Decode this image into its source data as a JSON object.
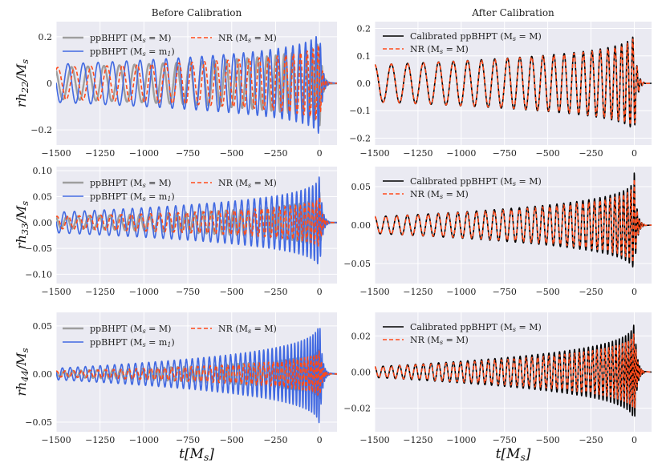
{
  "figure": {
    "x_axis_label": "t[M_s]",
    "col_titles": [
      "Before Calibration",
      "After Calibration"
    ]
  },
  "colors": {
    "panel_bg": "#eaeaf2",
    "grid": "#ffffff",
    "gray": "#9e9e9e",
    "blue": "#4169e1",
    "orange": "#ff4a1a",
    "black": "#000000"
  },
  "chart_data": [
    {
      "type": "line",
      "id": "p00",
      "row": 0,
      "col": 0,
      "title": "Before Calibration",
      "ylabel": "rh_22/M_s",
      "xlabel": "",
      "xlim": [
        -1500,
        100
      ],
      "ylim": [
        -0.265,
        0.265
      ],
      "xticks": [
        -1500,
        -1250,
        -1000,
        -750,
        -500,
        -250,
        0
      ],
      "xtick_labels": [
        "−1500",
        "−1250",
        "−1000",
        "−750",
        "−500",
        "−250",
        "0"
      ],
      "yticks": [
        -0.2,
        0,
        0.2
      ],
      "ytick_labels": [
        "−0.2",
        "0",
        "0.2"
      ],
      "legend": [
        {
          "label": "ppBHPT (M_s = M)",
          "color": "gray"
        },
        {
          "label": "ppBHPT (M_s = m_1)",
          "color": "blue"
        },
        {
          "label": "NR (M_s = M)",
          "color": "orange",
          "dash": true
        }
      ],
      "series": [
        {
          "name": "ppBHPT (M_s = M)",
          "color": "gray",
          "width": 2.4,
          "amp0": 0.068,
          "peak": 0.2,
          "p0": 98,
          "p1": 19,
          "phase": 0.6,
          "tstart": -1500,
          "tend": 60
        },
        {
          "name": "ppBHPT (M_s = m_1)",
          "color": "blue",
          "width": 1.6,
          "amp0": 0.082,
          "peak": 0.25,
          "p0": 90,
          "p1": 17,
          "phase": 1.5,
          "tstart": -1500,
          "tend": 60
        },
        {
          "name": "NR (M_s = M)",
          "color": "orange",
          "width": 1.6,
          "dash": true,
          "amp0": 0.068,
          "peak": 0.19,
          "p0": 98,
          "p1": 19,
          "phase": -0.6,
          "tstart": -1500,
          "tend": 60
        }
      ]
    },
    {
      "type": "line",
      "id": "p01",
      "row": 0,
      "col": 1,
      "title": "After Calibration",
      "ylabel": "",
      "xlabel": "",
      "xlim": [
        -1500,
        100
      ],
      "ylim": [
        -0.225,
        0.225
      ],
      "xticks": [
        -1500,
        -1250,
        -1000,
        -750,
        -500,
        -250,
        0
      ],
      "xtick_labels": [
        "−1500",
        "−1250",
        "−1000",
        "−750",
        "−500",
        "−250",
        "0"
      ],
      "yticks": [
        -0.2,
        -0.1,
        0,
        0.1,
        0.2
      ],
      "ytick_labels": [
        "−0.2",
        "−0.1",
        "0.0",
        "0.1",
        "0.2"
      ],
      "legend": [
        {
          "label": "Calibrated ppBHPT (M_s = M)",
          "color": "black"
        },
        {
          "label": "NR (M_s = M)",
          "color": "orange",
          "dash": true
        }
      ],
      "series": [
        {
          "name": "Calibrated ppBHPT (M_s = M)",
          "color": "black",
          "width": 1.6,
          "amp0": 0.068,
          "peak": 0.2,
          "p0": 98,
          "p1": 19,
          "phase": 0,
          "tstart": -1500,
          "tend": 60
        },
        {
          "name": "NR (M_s = M)",
          "color": "orange",
          "width": 1.6,
          "dash": true,
          "amp0": 0.068,
          "peak": 0.19,
          "p0": 98,
          "p1": 19,
          "phase": 0,
          "tstart": -1500,
          "tend": 60
        }
      ]
    },
    {
      "type": "line",
      "id": "p10",
      "row": 1,
      "col": 0,
      "title": "",
      "ylabel": "rh_33/M_s",
      "xlabel": "",
      "xlim": [
        -1500,
        100
      ],
      "ylim": [
        -0.118,
        0.108
      ],
      "xticks": [
        -1500,
        -1250,
        -1000,
        -750,
        -500,
        -250,
        0
      ],
      "xtick_labels": [
        "−1500",
        "−1250",
        "−1000",
        "−750",
        "−500",
        "−250",
        "0"
      ],
      "yticks": [
        -0.1,
        -0.05,
        0,
        0.05,
        0.1
      ],
      "ytick_labels": [
        "−0.10",
        "−0.05",
        "0.00",
        "0.05",
        "0.10"
      ],
      "legend": [
        {
          "label": "ppBHPT (M_s = M)",
          "color": "gray"
        },
        {
          "label": "ppBHPT (M_s = m_1)",
          "color": "blue"
        },
        {
          "label": "NR (M_s = M)",
          "color": "orange",
          "dash": true
        }
      ],
      "series": [
        {
          "name": "ppBHPT (M_s = M)",
          "color": "gray",
          "width": 2.4,
          "amp0": 0.011,
          "peak": 0.06,
          "p0": 65,
          "p1": 13,
          "phase": 0.4,
          "tstart": -1500,
          "tend": 60
        },
        {
          "name": "ppBHPT (M_s = m_1)",
          "color": "blue",
          "width": 1.6,
          "amp0": 0.02,
          "peak": 0.1,
          "p0": 60,
          "p1": 12,
          "phase": 1.4,
          "tstart": -1500,
          "tend": 60
        },
        {
          "name": "NR (M_s = M)",
          "color": "orange",
          "width": 1.6,
          "dash": true,
          "amp0": 0.012,
          "peak": 0.055,
          "p0": 65,
          "p1": 13,
          "phase": -0.5,
          "tstart": -1500,
          "tend": 60
        }
      ]
    },
    {
      "type": "line",
      "id": "p11",
      "row": 1,
      "col": 1,
      "title": "",
      "ylabel": "",
      "xlabel": "",
      "xlim": [
        -1500,
        100
      ],
      "ylim": [
        -0.076,
        0.076
      ],
      "xticks": [
        -1500,
        -1250,
        -1000,
        -750,
        -500,
        -250,
        0
      ],
      "xtick_labels": [
        "−1500",
        "−1250",
        "−1000",
        "−750",
        "−500",
        "−250",
        "0"
      ],
      "yticks": [
        -0.05,
        0,
        0.05
      ],
      "ytick_labels": [
        "−0.05",
        "0.00",
        "0.05"
      ],
      "legend": [
        {
          "label": "Calibrated ppBHPT (M_s = M)",
          "color": "black"
        },
        {
          "label": "NR (M_s = M)",
          "color": "orange",
          "dash": true
        }
      ],
      "series": [
        {
          "name": "Calibrated ppBHPT (M_s = M)",
          "color": "black",
          "width": 1.6,
          "amp0": 0.011,
          "peak": 0.068,
          "p0": 65,
          "p1": 13,
          "phase": 0,
          "tstart": -1500,
          "tend": 60
        },
        {
          "name": "NR (M_s = M)",
          "color": "orange",
          "width": 1.6,
          "dash": true,
          "amp0": 0.011,
          "peak": 0.06,
          "p0": 65,
          "p1": 13,
          "phase": 0,
          "tstart": -1500,
          "tend": 60
        }
      ]
    },
    {
      "type": "line",
      "id": "p20",
      "row": 2,
      "col": 0,
      "title": "",
      "ylabel": "rh_44/M_s",
      "xlabel": "t[M_s]",
      "xlim": [
        -1500,
        100
      ],
      "ylim": [
        -0.06,
        0.064
      ],
      "xticks": [
        -1500,
        -1250,
        -1000,
        -750,
        -500,
        -250,
        0
      ],
      "xtick_labels": [
        "−1500",
        "−1250",
        "−1000",
        "−750",
        "−500",
        "−250",
        "0"
      ],
      "yticks": [
        -0.05,
        0,
        0.05
      ],
      "ytick_labels": [
        "−0.05",
        "0.00",
        "0.05"
      ],
      "legend": [
        {
          "label": "ppBHPT (M_s = M)",
          "color": "gray"
        },
        {
          "label": "ppBHPT (M_s = m_1)",
          "color": "blue"
        },
        {
          "label": "NR (M_s = M)",
          "color": "orange",
          "dash": true
        }
      ],
      "series": [
        {
          "name": "ppBHPT (M_s = M)",
          "color": "gray",
          "width": 2.4,
          "amp0": 0.003,
          "peak": 0.03,
          "p0": 49,
          "p1": 10,
          "phase": 0.4,
          "tstart": -1500,
          "tend": 60
        },
        {
          "name": "ppBHPT (M_s = m_1)",
          "color": "blue",
          "width": 1.6,
          "amp0": 0.006,
          "peak": 0.06,
          "p0": 45,
          "p1": 9,
          "phase": 1.2,
          "tstart": -1500,
          "tend": 60
        },
        {
          "name": "NR (M_s = M)",
          "color": "orange",
          "width": 1.6,
          "dash": true,
          "amp0": 0.003,
          "peak": 0.028,
          "p0": 49,
          "p1": 10,
          "phase": -0.4,
          "tstart": -1500,
          "tend": 60
        }
      ]
    },
    {
      "type": "line",
      "id": "p21",
      "row": 2,
      "col": 1,
      "title": "",
      "ylabel": "",
      "xlabel": "t[M_s]",
      "xlim": [
        -1500,
        100
      ],
      "ylim": [
        -0.033,
        0.033
      ],
      "xticks": [
        -1500,
        -1250,
        -1000,
        -750,
        -500,
        -250,
        0
      ],
      "xtick_labels": [
        "−1500",
        "−1250",
        "−1000",
        "−750",
        "−500",
        "−250",
        "0"
      ],
      "yticks": [
        -0.02,
        0,
        0.02
      ],
      "ytick_labels": [
        "−0.02",
        "0.00",
        "0.02"
      ],
      "legend": [
        {
          "label": "Calibrated ppBHPT (M_s = M)",
          "color": "black"
        },
        {
          "label": "NR (M_s = M)",
          "color": "orange",
          "dash": true
        }
      ],
      "series": [
        {
          "name": "Calibrated ppBHPT (M_s = M)",
          "color": "black",
          "width": 1.6,
          "amp0": 0.003,
          "peak": 0.031,
          "p0": 49,
          "p1": 10,
          "phase": 0,
          "tstart": -1500,
          "tend": 60
        },
        {
          "name": "NR (M_s = M)",
          "color": "orange",
          "width": 1.6,
          "dash": true,
          "amp0": 0.003,
          "peak": 0.025,
          "p0": 49,
          "p1": 10,
          "phase": 0,
          "tstart": -1500,
          "tend": 60
        }
      ]
    }
  ]
}
